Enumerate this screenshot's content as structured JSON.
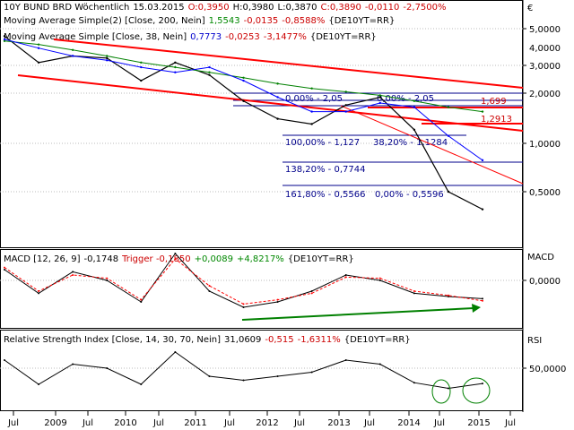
{
  "header": {
    "line1": {
      "name": "10Y BUND BRD Wöchentlich",
      "date": "15.03.2015",
      "open": "O:0,3950",
      "high": "H:0,3980",
      "low": "L:0,3870",
      "close": "C:0,3890",
      "change": "-0,0110",
      "change_pct": "-2,7500%"
    },
    "line2": {
      "label": "Moving Average Simple(2) [Close, 200, Nein]",
      "value": "1,5543",
      "change": "-0,0135",
      "change_pct": "-0,8588%",
      "suffix": "{DE10YT=RR}"
    },
    "line3": {
      "label": "Moving Average Simple [Close, 38, Nein]",
      "value": "0,7773",
      "change": "-0,0253",
      "change_pct": "-3,1477%",
      "suffix": "{DE10YT=RR}"
    },
    "currency_symbol": "€"
  },
  "price_panel": {
    "y_ticks": [
      "5,0000",
      "4,0000",
      "3,0000",
      "2,0000",
      "1,0000",
      "0,5000"
    ],
    "fib_labels": [
      "0,00% - 2,05",
      "0,00% - 2,05",
      "100,00% - 1,127",
      "38,20% - 1,1284",
      "138,20% - 0,7744",
      "161,80% - 0,5566",
      "0,00% - 0,5596"
    ],
    "level_labels": [
      "1,699",
      "1,2913"
    ]
  },
  "macd_panel": {
    "label": "MACD [12, 26, 9]",
    "value": "-0,1748",
    "trigger_label": "Trigger",
    "trigger_value": "-0,1850",
    "change": "+0,0089",
    "change_pct": "+4,8217%",
    "suffix": "{DE10YT=RR}",
    "axis_title": "MACD",
    "y_tick": "0,0000"
  },
  "rsi_panel": {
    "label": "Relative Strength Index [Close, 14, 30, 70, Nein]",
    "value": "31,0609",
    "change": "-0,515",
    "change_pct": "-1,6311%",
    "suffix": "{DE10YT=RR}",
    "axis_title": "RSI",
    "y_tick": "50,0000"
  },
  "x_axis": {
    "labels": [
      "Jul",
      "2009",
      "Jul",
      "2010",
      "Jul",
      "2011",
      "Jul",
      "2012",
      "Jul",
      "2013",
      "Jul",
      "2014",
      "Jul",
      "2015",
      "Jul"
    ]
  },
  "colors": {
    "price": "#000000",
    "ma200": "#008000",
    "ma38": "#0000ff",
    "trend": "#ff0000",
    "fib": "#0000cc",
    "macd_trigger": "#ff0000",
    "macd_trend": "#008000",
    "negative": "#ff0000",
    "positive": "#008000"
  },
  "chart_data": [
    {
      "type": "line",
      "title": "10Y BUND BRD Wöchentlich",
      "x": [
        "2008-07",
        "2009-01",
        "2009-07",
        "2010-01",
        "2010-07",
        "2011-01",
        "2011-07",
        "2012-01",
        "2012-07",
        "2013-01",
        "2013-07",
        "2014-01",
        "2014-07",
        "2015-01",
        "2015-03"
      ],
      "yscale": "log",
      "ylim": [
        0.3,
        5.5
      ],
      "series": [
        {
          "name": "10Y BUND BRD",
          "values": [
            4.5,
            3.1,
            3.4,
            3.3,
            2.4,
            3.1,
            2.6,
            1.8,
            1.4,
            1.3,
            1.7,
            1.9,
            1.2,
            0.5,
            0.39
          ]
        },
        {
          "name": "Moving Average Simple(2) [Close, 200, Nein]",
          "values": [
            4.2,
            4.0,
            3.7,
            3.4,
            3.1,
            2.9,
            2.7,
            2.5,
            2.3,
            2.15,
            2.05,
            1.95,
            1.8,
            1.65,
            1.55
          ]
        },
        {
          "name": "Moving Average Simple [Close, 38, Nein]",
          "values": [
            4.3,
            3.8,
            3.4,
            3.2,
            2.9,
            2.7,
            2.9,
            2.4,
            1.9,
            1.55,
            1.55,
            1.75,
            1.65,
            1.1,
            0.78
          ]
        }
      ]
    },
    {
      "type": "line",
      "title": "MACD [12, 26, 9]",
      "x": [
        "2008-07",
        "2009-01",
        "2009-07",
        "2010-01",
        "2010-07",
        "2011-01",
        "2011-07",
        "2012-01",
        "2012-07",
        "2013-01",
        "2013-07",
        "2014-01",
        "2014-07",
        "2015-01",
        "2015-03"
      ],
      "series": [
        {
          "name": "MACD",
          "values": [
            0.1,
            -0.12,
            0.08,
            0.0,
            -0.2,
            0.25,
            -0.1,
            -0.25,
            -0.2,
            -0.1,
            0.05,
            0.0,
            -0.12,
            -0.15,
            -0.17
          ]
        },
        {
          "name": "Trigger",
          "values": [
            0.12,
            -0.1,
            0.05,
            0.02,
            -0.18,
            0.2,
            -0.05,
            -0.22,
            -0.18,
            -0.12,
            0.03,
            0.02,
            -0.1,
            -0.14,
            -0.19
          ]
        }
      ]
    },
    {
      "type": "line",
      "title": "Relative Strength Index [Close, 14, 30, 70, Nein]",
      "x": [
        "2008-07",
        "2009-01",
        "2009-07",
        "2010-01",
        "2010-07",
        "2011-01",
        "2011-07",
        "2012-01",
        "2012-07",
        "2013-01",
        "2013-07",
        "2014-01",
        "2014-07",
        "2015-01",
        "2015-03"
      ],
      "series": [
        {
          "name": "RSI",
          "values": [
            60,
            30,
            55,
            50,
            30,
            70,
            40,
            35,
            40,
            45,
            60,
            55,
            32,
            25,
            31
          ]
        }
      ]
    }
  ]
}
